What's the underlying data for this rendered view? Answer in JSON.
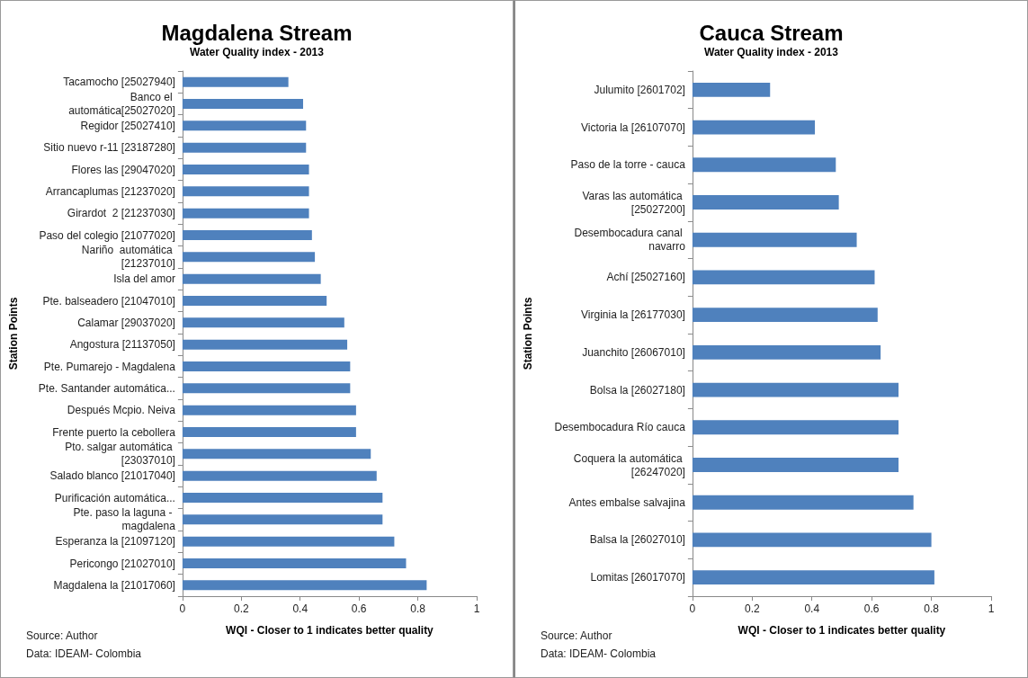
{
  "chart_data": [
    {
      "type": "bar",
      "orientation": "horizontal",
      "title": "Magdalena Stream",
      "subtitle": "Water Quality index - 2013",
      "xlabel": "WQI - Closer to 1 indicates better quality",
      "ylabel": "Station Points",
      "categories": [
        "Tacamocho [25027940]",
        "Banco el automática[25027020]",
        "Regidor [25027410]",
        "Sitio nuevo r-11 [23187280]",
        "Flores las [29047020]",
        "Arrancaplumas [21237020]",
        "Girardot  2 [21237030]",
        "Paso del colegio [21077020]",
        "Nariño  automática [21237010]",
        "Isla del amor",
        "Pte. balseadero [21047010]",
        "Calamar [29037020]",
        "Angostura [21137050]",
        "Pte. Pumarejo - Magdalena",
        "Pte. Santander automática...",
        "Después Mcpio. Neiva",
        "Frente puerto la cebollera",
        "Pto. salgar automática [23037010]",
        "Salado blanco [21017040]",
        "Purificación automática...",
        "Pte. paso la laguna - magdalena",
        "Esperanza la [21097120]",
        "Pericongo [21027010]",
        "Magdalena la [21017060]"
      ],
      "values": [
        0.36,
        0.41,
        0.42,
        0.42,
        0.43,
        0.43,
        0.43,
        0.44,
        0.45,
        0.47,
        0.49,
        0.55,
        0.56,
        0.57,
        0.57,
        0.59,
        0.59,
        0.64,
        0.66,
        0.68,
        0.68,
        0.72,
        0.76,
        0.83
      ],
      "color": "#4f81bd",
      "xlim": [
        0,
        1
      ],
      "xticks": [
        0,
        0.2,
        0.4,
        0.6,
        0.8,
        1
      ],
      "annotations": [
        "Source: Author",
        "Data: IDEAM- Colombia"
      ]
    },
    {
      "type": "bar",
      "orientation": "horizontal",
      "title": "Cauca Stream",
      "subtitle": "Water Quality index - 2013",
      "xlabel": "WQI - Closer to 1 indicates better quality",
      "ylabel": "Station Points",
      "categories": [
        "Julumito [2601702]",
        "Victoria la [26107070]",
        "Paso de la torre - cauca",
        "Varas las automática [25027200]",
        "Desembocadura canal navarro",
        "Achí [25027160]",
        "Virginia la [26177030]",
        "Juanchito [26067010]",
        "Bolsa la [26027180]",
        "Desembocadura Río cauca",
        "Coquera la automática [26247020]",
        "Antes embalse salvajina",
        "Balsa la [26027010]",
        "Lomitas [26017070]"
      ],
      "values": [
        0.26,
        0.41,
        0.48,
        0.49,
        0.55,
        0.61,
        0.62,
        0.63,
        0.69,
        0.69,
        0.69,
        0.74,
        0.8,
        0.81
      ],
      "color": "#4f81bd",
      "xlim": [
        0,
        1
      ],
      "xticks": [
        0,
        0.2,
        0.4,
        0.6,
        0.8,
        1
      ],
      "annotations": [
        "Source: Author",
        "Data: IDEAM- Colombia"
      ]
    }
  ]
}
